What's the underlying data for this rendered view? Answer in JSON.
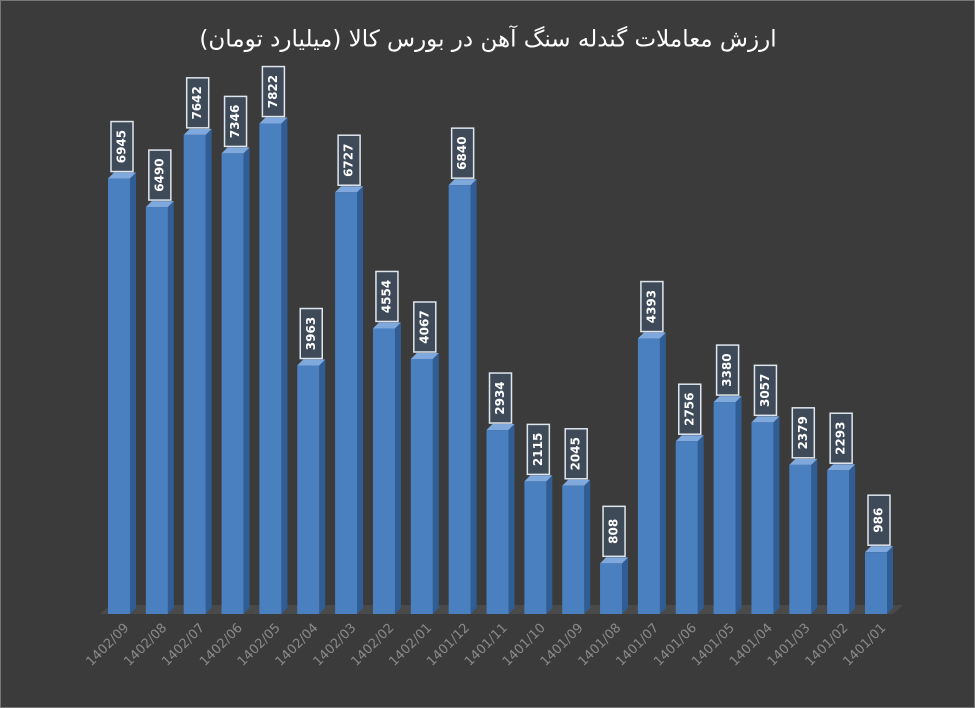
{
  "chart_data": {
    "type": "bar",
    "title": "ارزش معاملات گندله سنگ آهن در بورس کالا (میلیارد تومان)",
    "categories": [
      "1402/09",
      "1402/08",
      "1402/07",
      "1402/06",
      "1402/05",
      "1402/04",
      "1402/03",
      "1402/02",
      "1402/01",
      "1401/12",
      "1401/11",
      "1401/10",
      "1401/09",
      "1401/08",
      "1401/07",
      "1401/06",
      "1401/05",
      "1401/04",
      "1401/03",
      "1401/02",
      "1401/01"
    ],
    "values": [
      6945,
      6490,
      7642,
      7346,
      7822,
      3963,
      6727,
      4554,
      4067,
      6840,
      2934,
      2115,
      2045,
      808,
      4393,
      2756,
      3380,
      3057,
      2379,
      2293,
      986
    ],
    "color": "#4a7fc0"
  }
}
